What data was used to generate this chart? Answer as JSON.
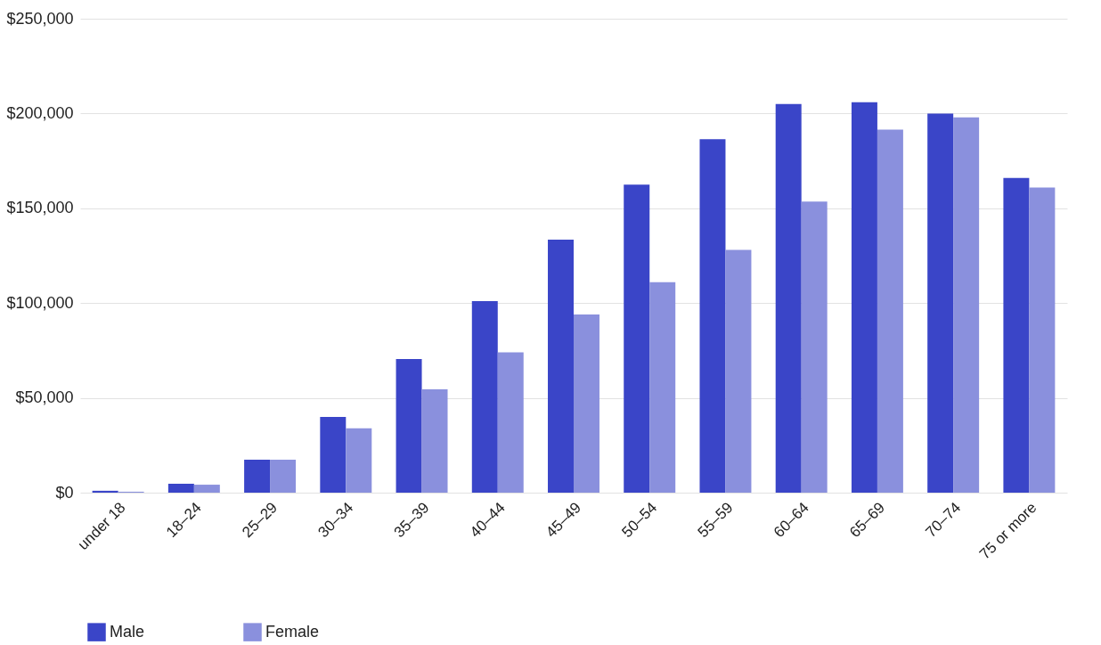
{
  "chart_data": {
    "type": "bar",
    "categories": [
      "under 18",
      "18–24",
      "25–29",
      "30–34",
      "35–39",
      "40–44",
      "45–49",
      "50–54",
      "55–59",
      "60–64",
      "65–69",
      "70–74",
      "75 or more"
    ],
    "series": [
      {
        "name": "Male",
        "color": "#3a45c8",
        "values": [
          1000,
          4700,
          17400,
          40000,
          70500,
          101000,
          133500,
          162500,
          186500,
          205000,
          206000,
          200000,
          166000
        ]
      },
      {
        "name": "Female",
        "color": "#8a90dd",
        "values": [
          500,
          4200,
          17400,
          34000,
          54500,
          74000,
          94000,
          111000,
          128000,
          153500,
          191500,
          198000,
          161000
        ]
      }
    ],
    "ylim": [
      0,
      250000
    ],
    "yticks": [
      {
        "value": 0,
        "label": "$0"
      },
      {
        "value": 50000,
        "label": "$50,000"
      },
      {
        "value": 100000,
        "label": "$100,000"
      },
      {
        "value": 150000,
        "label": "$150,000"
      },
      {
        "value": 200000,
        "label": "$200,000"
      },
      {
        "value": 250000,
        "label": "$250,000"
      }
    ],
    "grid": "y",
    "legend": "bottom left"
  }
}
